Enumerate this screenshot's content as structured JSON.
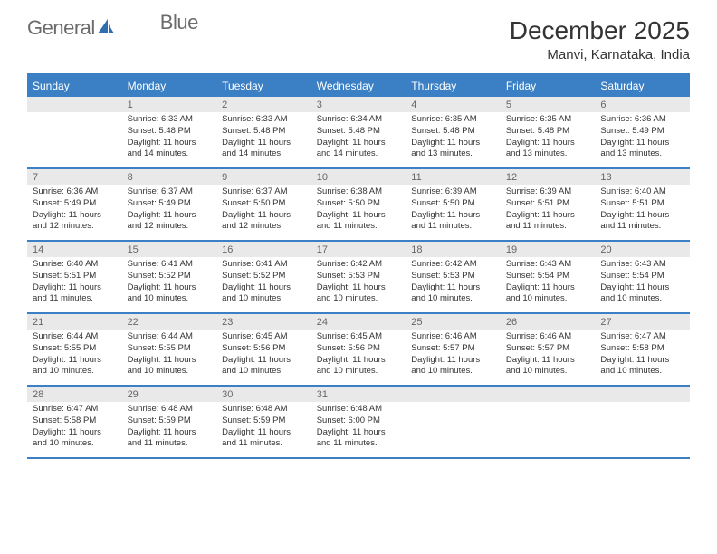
{
  "brand": {
    "name1": "General",
    "name2": "Blue"
  },
  "title": "December 2025",
  "location": "Manvi, Karnataka, India",
  "colors": {
    "accent": "#3b7fc4",
    "header_bg": "#3b7fc4",
    "header_text": "#ffffff",
    "daynum_bg": "#e9e9e9",
    "daynum_text": "#666666",
    "body_text": "#333333",
    "logo_gray": "#6b6b6b",
    "logo_blue": "#2f6fb0"
  },
  "typography": {
    "title_fontsize": 28,
    "location_fontsize": 15,
    "dayheader_fontsize": 12,
    "daynum_fontsize": 11,
    "daytext_fontsize": 9.5
  },
  "day_names": [
    "Sunday",
    "Monday",
    "Tuesday",
    "Wednesday",
    "Thursday",
    "Friday",
    "Saturday"
  ],
  "weeks": [
    [
      {
        "n": "",
        "sr": "",
        "ss": "",
        "dl": ""
      },
      {
        "n": "1",
        "sr": "Sunrise: 6:33 AM",
        "ss": "Sunset: 5:48 PM",
        "dl": "Daylight: 11 hours and 14 minutes."
      },
      {
        "n": "2",
        "sr": "Sunrise: 6:33 AM",
        "ss": "Sunset: 5:48 PM",
        "dl": "Daylight: 11 hours and 14 minutes."
      },
      {
        "n": "3",
        "sr": "Sunrise: 6:34 AM",
        "ss": "Sunset: 5:48 PM",
        "dl": "Daylight: 11 hours and 14 minutes."
      },
      {
        "n": "4",
        "sr": "Sunrise: 6:35 AM",
        "ss": "Sunset: 5:48 PM",
        "dl": "Daylight: 11 hours and 13 minutes."
      },
      {
        "n": "5",
        "sr": "Sunrise: 6:35 AM",
        "ss": "Sunset: 5:48 PM",
        "dl": "Daylight: 11 hours and 13 minutes."
      },
      {
        "n": "6",
        "sr": "Sunrise: 6:36 AM",
        "ss": "Sunset: 5:49 PM",
        "dl": "Daylight: 11 hours and 13 minutes."
      }
    ],
    [
      {
        "n": "7",
        "sr": "Sunrise: 6:36 AM",
        "ss": "Sunset: 5:49 PM",
        "dl": "Daylight: 11 hours and 12 minutes."
      },
      {
        "n": "8",
        "sr": "Sunrise: 6:37 AM",
        "ss": "Sunset: 5:49 PM",
        "dl": "Daylight: 11 hours and 12 minutes."
      },
      {
        "n": "9",
        "sr": "Sunrise: 6:37 AM",
        "ss": "Sunset: 5:50 PM",
        "dl": "Daylight: 11 hours and 12 minutes."
      },
      {
        "n": "10",
        "sr": "Sunrise: 6:38 AM",
        "ss": "Sunset: 5:50 PM",
        "dl": "Daylight: 11 hours and 11 minutes."
      },
      {
        "n": "11",
        "sr": "Sunrise: 6:39 AM",
        "ss": "Sunset: 5:50 PM",
        "dl": "Daylight: 11 hours and 11 minutes."
      },
      {
        "n": "12",
        "sr": "Sunrise: 6:39 AM",
        "ss": "Sunset: 5:51 PM",
        "dl": "Daylight: 11 hours and 11 minutes."
      },
      {
        "n": "13",
        "sr": "Sunrise: 6:40 AM",
        "ss": "Sunset: 5:51 PM",
        "dl": "Daylight: 11 hours and 11 minutes."
      }
    ],
    [
      {
        "n": "14",
        "sr": "Sunrise: 6:40 AM",
        "ss": "Sunset: 5:51 PM",
        "dl": "Daylight: 11 hours and 11 minutes."
      },
      {
        "n": "15",
        "sr": "Sunrise: 6:41 AM",
        "ss": "Sunset: 5:52 PM",
        "dl": "Daylight: 11 hours and 10 minutes."
      },
      {
        "n": "16",
        "sr": "Sunrise: 6:41 AM",
        "ss": "Sunset: 5:52 PM",
        "dl": "Daylight: 11 hours and 10 minutes."
      },
      {
        "n": "17",
        "sr": "Sunrise: 6:42 AM",
        "ss": "Sunset: 5:53 PM",
        "dl": "Daylight: 11 hours and 10 minutes."
      },
      {
        "n": "18",
        "sr": "Sunrise: 6:42 AM",
        "ss": "Sunset: 5:53 PM",
        "dl": "Daylight: 11 hours and 10 minutes."
      },
      {
        "n": "19",
        "sr": "Sunrise: 6:43 AM",
        "ss": "Sunset: 5:54 PM",
        "dl": "Daylight: 11 hours and 10 minutes."
      },
      {
        "n": "20",
        "sr": "Sunrise: 6:43 AM",
        "ss": "Sunset: 5:54 PM",
        "dl": "Daylight: 11 hours and 10 minutes."
      }
    ],
    [
      {
        "n": "21",
        "sr": "Sunrise: 6:44 AM",
        "ss": "Sunset: 5:55 PM",
        "dl": "Daylight: 11 hours and 10 minutes."
      },
      {
        "n": "22",
        "sr": "Sunrise: 6:44 AM",
        "ss": "Sunset: 5:55 PM",
        "dl": "Daylight: 11 hours and 10 minutes."
      },
      {
        "n": "23",
        "sr": "Sunrise: 6:45 AM",
        "ss": "Sunset: 5:56 PM",
        "dl": "Daylight: 11 hours and 10 minutes."
      },
      {
        "n": "24",
        "sr": "Sunrise: 6:45 AM",
        "ss": "Sunset: 5:56 PM",
        "dl": "Daylight: 11 hours and 10 minutes."
      },
      {
        "n": "25",
        "sr": "Sunrise: 6:46 AM",
        "ss": "Sunset: 5:57 PM",
        "dl": "Daylight: 11 hours and 10 minutes."
      },
      {
        "n": "26",
        "sr": "Sunrise: 6:46 AM",
        "ss": "Sunset: 5:57 PM",
        "dl": "Daylight: 11 hours and 10 minutes."
      },
      {
        "n": "27",
        "sr": "Sunrise: 6:47 AM",
        "ss": "Sunset: 5:58 PM",
        "dl": "Daylight: 11 hours and 10 minutes."
      }
    ],
    [
      {
        "n": "28",
        "sr": "Sunrise: 6:47 AM",
        "ss": "Sunset: 5:58 PM",
        "dl": "Daylight: 11 hours and 10 minutes."
      },
      {
        "n": "29",
        "sr": "Sunrise: 6:48 AM",
        "ss": "Sunset: 5:59 PM",
        "dl": "Daylight: 11 hours and 11 minutes."
      },
      {
        "n": "30",
        "sr": "Sunrise: 6:48 AM",
        "ss": "Sunset: 5:59 PM",
        "dl": "Daylight: 11 hours and 11 minutes."
      },
      {
        "n": "31",
        "sr": "Sunrise: 6:48 AM",
        "ss": "Sunset: 6:00 PM",
        "dl": "Daylight: 11 hours and 11 minutes."
      },
      {
        "n": "",
        "sr": "",
        "ss": "",
        "dl": ""
      },
      {
        "n": "",
        "sr": "",
        "ss": "",
        "dl": ""
      },
      {
        "n": "",
        "sr": "",
        "ss": "",
        "dl": ""
      }
    ]
  ]
}
